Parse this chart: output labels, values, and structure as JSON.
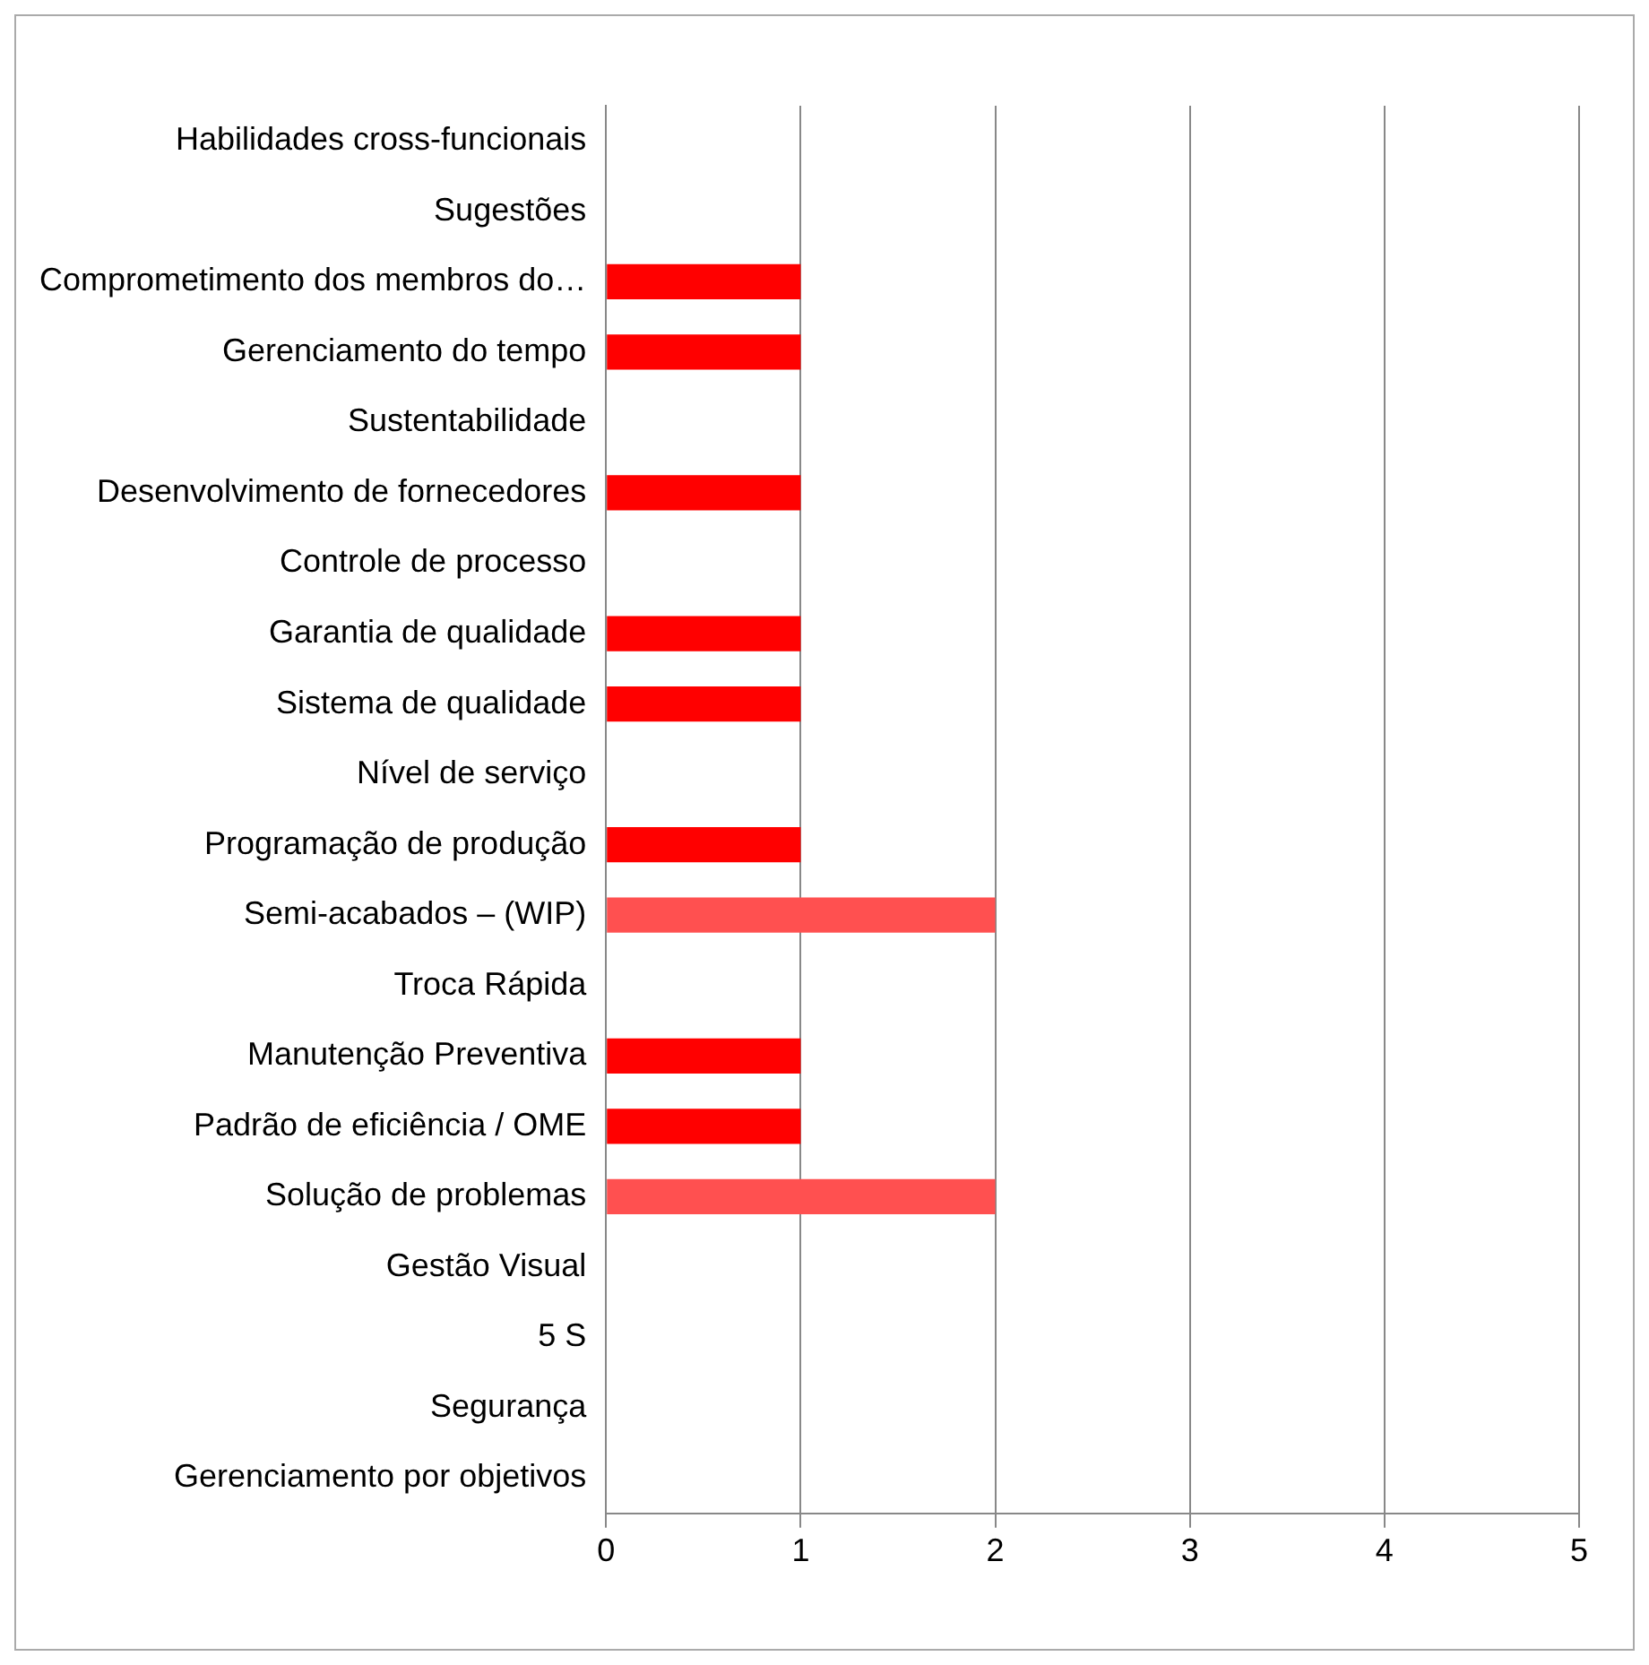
{
  "chart_data": {
    "type": "bar",
    "orientation": "horizontal",
    "categories": [
      "Habilidades cross-funcionais",
      "Sugestões",
      "Comprometimento dos membros do…",
      "Gerenciamento do tempo",
      "Sustentabilidade",
      "Desenvolvimento de fornecedores",
      "Controle de processo",
      "Garantia de qualidade",
      "Sistema de qualidade",
      "Nível de serviço",
      "Programação de produção",
      "Semi-acabados – (WIP)",
      "Troca Rápida",
      "Manutenção Preventiva",
      "Padrão de eficiência / OME",
      "Solução de problemas",
      "Gestão Visual",
      "5 S",
      "Segurança",
      "Gerenciamento por objetivos"
    ],
    "values": [
      0,
      0,
      1,
      1,
      0,
      1,
      0,
      1,
      1,
      0,
      1,
      2,
      0,
      1,
      1,
      2,
      0,
      0,
      0,
      0
    ],
    "colors": [
      "#c00000",
      "#c00000",
      "#ff0000",
      "#ff0000",
      "#c00000",
      "#ff0000",
      "#c00000",
      "#ff0000",
      "#ff0000",
      "#c00000",
      "#ff0000",
      "#ff5050",
      "#c00000",
      "#ff0000",
      "#ff0000",
      "#ff5050",
      "#c00000",
      "#c00000",
      "#c00000",
      "#c00000"
    ],
    "xlim": [
      0,
      5
    ],
    "xticks": [
      0,
      1,
      2,
      3,
      4,
      5
    ],
    "grid": "x",
    "legend": false
  }
}
